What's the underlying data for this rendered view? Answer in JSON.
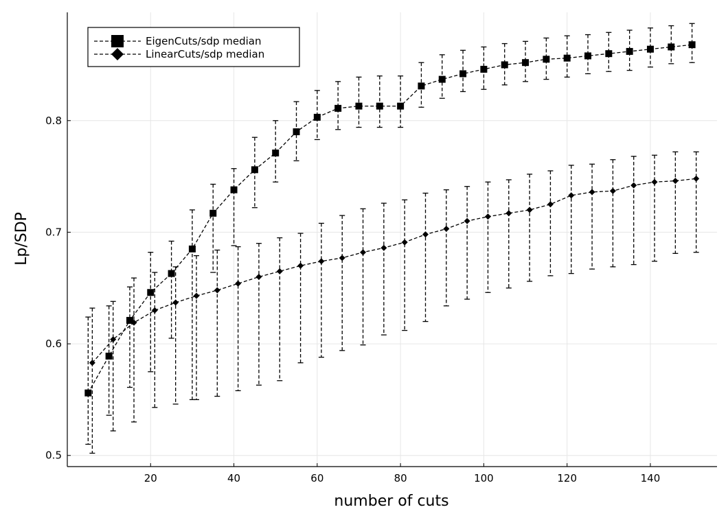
{
  "chart_data": {
    "type": "line",
    "title": "",
    "xlabel": "number of cuts",
    "ylabel": "Lp/SDP",
    "xlim": [
      0,
      156
    ],
    "ylim": [
      0.49,
      0.897
    ],
    "x_ticks": [
      20,
      40,
      60,
      80,
      100,
      120,
      140
    ],
    "y_ticks": [
      0.5,
      0.6,
      0.7,
      0.8
    ],
    "x_tick_labels": [
      "20",
      "40",
      "60",
      "80",
      "100",
      "120",
      "140"
    ],
    "y_tick_labels": [
      "0.5",
      "0.6",
      "0.7",
      "0.8"
    ],
    "grid": true,
    "legend_position": "top-left",
    "colors": {
      "series": "#000000",
      "grid": "#e6e6e6",
      "background": "#ffffff"
    },
    "series": [
      {
        "name": "EigenCuts/sdp median",
        "marker": "square",
        "line": "dashed",
        "x": [
          5,
          10,
          15,
          20,
          25,
          30,
          35,
          40,
          45,
          50,
          55,
          60,
          65,
          70,
          75,
          80,
          85,
          90,
          95,
          100,
          105,
          110,
          115,
          120,
          125,
          130,
          135,
          140,
          145,
          150
        ],
        "y": [
          0.556,
          0.589,
          0.621,
          0.646,
          0.663,
          0.685,
          0.717,
          0.738,
          0.756,
          0.771,
          0.79,
          0.803,
          0.811,
          0.813,
          0.813,
          0.813,
          0.831,
          0.837,
          0.842,
          0.846,
          0.85,
          0.852,
          0.855,
          0.856,
          0.858,
          0.86,
          0.862,
          0.864,
          0.866,
          0.868
        ],
        "lower": [
          0.51,
          0.536,
          0.561,
          0.575,
          0.605,
          0.55,
          0.664,
          0.688,
          0.722,
          0.745,
          0.764,
          0.783,
          0.792,
          0.794,
          0.794,
          0.794,
          0.812,
          0.82,
          0.826,
          0.828,
          0.832,
          0.835,
          0.837,
          0.839,
          0.842,
          0.844,
          0.845,
          0.848,
          0.851,
          0.852
        ],
        "upper": [
          0.624,
          0.634,
          0.651,
          0.682,
          0.692,
          0.72,
          0.743,
          0.757,
          0.785,
          0.8,
          0.817,
          0.827,
          0.835,
          0.839,
          0.84,
          0.84,
          0.852,
          0.859,
          0.863,
          0.866,
          0.869,
          0.871,
          0.874,
          0.876,
          0.877,
          0.879,
          0.881,
          0.883,
          0.885,
          0.887
        ]
      },
      {
        "name": "LinearCuts/sdp median",
        "marker": "diamond",
        "line": "dashed",
        "x": [
          6,
          11,
          16,
          21,
          26,
          31,
          36,
          41,
          46,
          51,
          56,
          61,
          66,
          71,
          76,
          81,
          86,
          91,
          96,
          101,
          106,
          111,
          116,
          121,
          126,
          131,
          136,
          141,
          146,
          151
        ],
        "y": [
          0.583,
          0.604,
          0.619,
          0.63,
          0.637,
          0.643,
          0.648,
          0.654,
          0.66,
          0.665,
          0.67,
          0.674,
          0.677,
          0.682,
          0.686,
          0.691,
          0.698,
          0.703,
          0.71,
          0.714,
          0.717,
          0.72,
          0.725,
          0.733,
          0.736,
          0.737,
          0.742,
          0.745,
          0.746,
          0.748
        ],
        "lower": [
          0.502,
          0.522,
          0.53,
          0.543,
          0.546,
          0.55,
          0.553,
          0.558,
          0.563,
          0.567,
          0.583,
          0.588,
          0.594,
          0.599,
          0.608,
          0.612,
          0.62,
          0.634,
          0.64,
          0.646,
          0.65,
          0.656,
          0.661,
          0.663,
          0.667,
          0.669,
          0.671,
          0.674,
          0.681,
          0.682
        ],
        "upper": [
          0.632,
          0.638,
          0.659,
          0.664,
          0.669,
          0.679,
          0.684,
          0.687,
          0.69,
          0.695,
          0.699,
          0.708,
          0.715,
          0.721,
          0.726,
          0.729,
          0.735,
          0.738,
          0.741,
          0.745,
          0.747,
          0.752,
          0.755,
          0.76,
          0.761,
          0.765,
          0.768,
          0.769,
          0.772,
          0.772
        ]
      }
    ]
  }
}
